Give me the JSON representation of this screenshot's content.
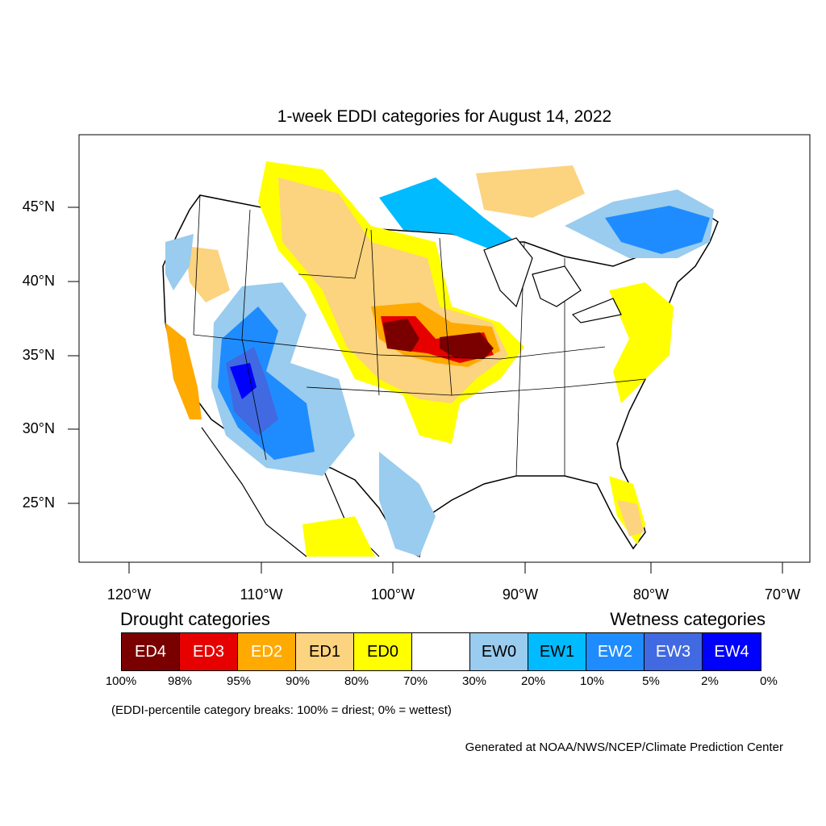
{
  "title": "1-week EDDI categories for August 14, 2022",
  "lat_labels": [
    "45°N",
    "40°N",
    "35°N",
    "30°N",
    "25°N"
  ],
  "lon_labels": [
    "120°W",
    "110°W",
    "100°W",
    "90°W",
    "80°W",
    "70°W"
  ],
  "legend": {
    "drought_heading": "Drought categories",
    "wetness_heading": "Wetness categories",
    "categories": [
      {
        "label": "ED4",
        "color": "#7a0000",
        "text_color": "#ffffff"
      },
      {
        "label": "ED3",
        "color": "#e60000",
        "text_color": "#ffffff"
      },
      {
        "label": "ED2",
        "color": "#ffaa00",
        "text_color": "#ffffff"
      },
      {
        "label": "ED1",
        "color": "#fcd37f",
        "text_color": "#000000"
      },
      {
        "label": "ED0",
        "color": "#ffff00",
        "text_color": "#000000"
      },
      {
        "label": "",
        "color": "#ffffff",
        "text_color": "#000000"
      },
      {
        "label": "EW0",
        "color": "#99ccee",
        "text_color": "#000000"
      },
      {
        "label": "EW1",
        "color": "#00bbff",
        "text_color": "#000000"
      },
      {
        "label": "EW2",
        "color": "#1e8cff",
        "text_color": "#ffffff"
      },
      {
        "label": "EW3",
        "color": "#4169e1",
        "text_color": "#ffffff"
      },
      {
        "label": "EW4",
        "color": "#0000ff",
        "text_color": "#ffffff"
      }
    ],
    "percentiles": [
      "100%",
      "98%",
      "95%",
      "90%",
      "80%",
      "70%",
      "30%",
      "20%",
      "10%",
      "5%",
      "2%",
      "0%"
    ]
  },
  "note": "(EDDI-percentile category breaks: 100% = driest; 0% = wettest)",
  "credit": "Generated at NOAA/NWS/NCEP/Climate Prediction Center"
}
